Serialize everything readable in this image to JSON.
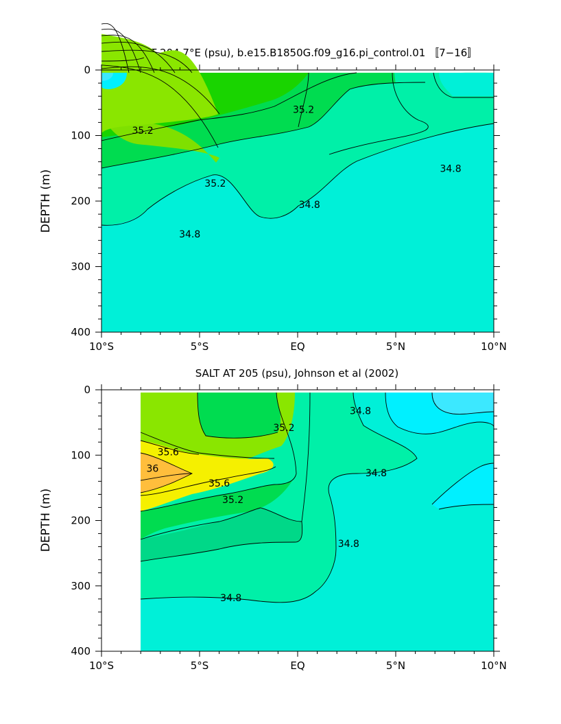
{
  "chart_data": [
    {
      "type": "contour",
      "title": "SALT AT 204.7°E (psu), b.e15.B1850G.f09_g16.pi_control.01 〚7−16〛",
      "ylabel": "DEPTH (m)",
      "xlabel": "",
      "xlim": [
        -10,
        10
      ],
      "ylim": [
        0,
        400
      ],
      "y_inverted": true,
      "x_ticks": [
        -10,
        -5,
        0,
        5,
        10
      ],
      "x_tick_labels": [
        "10°S",
        "5°S",
        "EQ",
        "5°N",
        "10°N"
      ],
      "y_ticks": [
        0,
        100,
        200,
        300,
        400
      ],
      "y_tick_labels": [
        "0",
        "100",
        "200",
        "300",
        "400"
      ],
      "data_extent_x": [
        -10,
        10
      ],
      "data_extent_y": [
        5,
        400
      ],
      "contour_labels": [
        {
          "text": "35.2",
          "x": -7.9,
          "y": 92
        },
        {
          "text": "35.2",
          "x": 0.3,
          "y": 60
        },
        {
          "text": "35.2",
          "x": -4.2,
          "y": 173
        },
        {
          "text": "34.8",
          "x": 0.6,
          "y": 205
        },
        {
          "text": "34.8",
          "x": 7.8,
          "y": 150
        },
        {
          "text": "34.8",
          "x": -5.5,
          "y": 250
        }
      ]
    },
    {
      "type": "contour",
      "title": "SALT AT 205 (psu), Johnson et al (2002)",
      "ylabel": "DEPTH (m)",
      "xlabel": "",
      "xlim": [
        -10,
        10
      ],
      "ylim": [
        0,
        400
      ],
      "y_inverted": true,
      "x_ticks": [
        -10,
        -5,
        0,
        5,
        10
      ],
      "x_tick_labels": [
        "10°S",
        "5°S",
        "EQ",
        "5°N",
        "10°N"
      ],
      "y_ticks": [
        0,
        100,
        200,
        300,
        400
      ],
      "y_tick_labels": [
        "0",
        "100",
        "200",
        "300",
        "400"
      ],
      "data_extent_x": [
        -7.8,
        10
      ],
      "data_extent_y": [
        5,
        400
      ],
      "contour_labels": [
        {
          "text": "35.6",
          "x": -6.6,
          "y": 95
        },
        {
          "text": "36",
          "x": -7.4,
          "y": 120
        },
        {
          "text": "35.6",
          "x": -4.0,
          "y": 143
        },
        {
          "text": "35.2",
          "x": -3.3,
          "y": 168
        },
        {
          "text": "35.2",
          "x": -0.7,
          "y": 58
        },
        {
          "text": "34.8",
          "x": 3.2,
          "y": 32
        },
        {
          "text": "34.8",
          "x": 4.0,
          "y": 127
        },
        {
          "text": "34.8",
          "x": 2.6,
          "y": 235
        },
        {
          "text": "34.8",
          "x": -3.4,
          "y": 318
        }
      ]
    }
  ]
}
